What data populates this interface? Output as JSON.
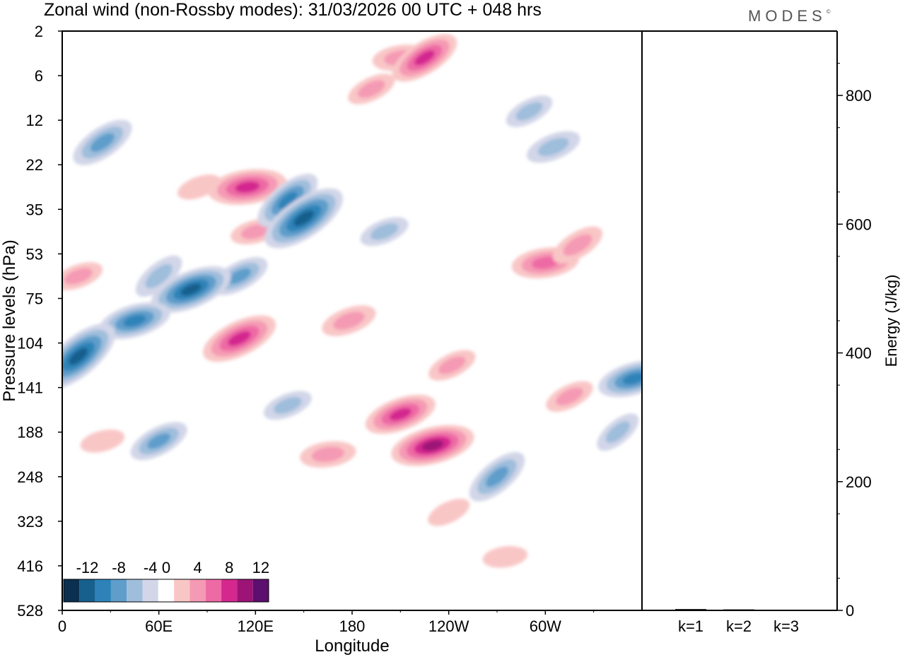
{
  "title": "Zonal wind (non-Rossby modes):  31/03/2026  00 UTC  + 048 hrs",
  "logo": "MODES",
  "logo_mark": "©",
  "chart_data": [
    {
      "type": "heatmap",
      "title": "Zonal wind (non-Rossby modes):  31/03/2026  00 UTC  + 048 hrs",
      "xlabel": "Longitude",
      "ylabel": "Pressure levels (hPa)",
      "x_ticks": [
        "0",
        "60E",
        "120E",
        "180",
        "120W",
        "60W"
      ],
      "x_range_deg": [
        0,
        360
      ],
      "y_ticks": [
        "2",
        "6",
        "12",
        "22",
        "35",
        "53",
        "75",
        "104",
        "141",
        "188",
        "248",
        "323",
        "416",
        "528"
      ],
      "colorbar": {
        "labels": [
          "-12",
          "-8",
          "-4",
          "0",
          "4",
          "8",
          "12"
        ],
        "levels": [
          -14,
          -12,
          -10,
          -8,
          -6,
          -4,
          -2,
          2,
          4,
          6,
          8,
          10,
          12,
          14
        ],
        "colors": [
          "#0b2f4f",
          "#175f8c",
          "#2d83b8",
          "#5f9dcb",
          "#9fbedc",
          "#d2d6e8",
          "#ffffff",
          "#f9c6c6",
          "#f59ab4",
          "#ee6aa5",
          "#d4288f",
          "#9b1476",
          "#5c0f6e"
        ]
      },
      "features": [
        {
          "lon": 60,
          "level": 5.5,
          "value": -5
        },
        {
          "lon": 25,
          "level": 2.5,
          "value": -7
        },
        {
          "lon": 85,
          "level": 3.5,
          "value": 3
        },
        {
          "lon": 120,
          "level": 4.5,
          "value": 4
        },
        {
          "lon": 115,
          "level": 3.5,
          "value": 9
        },
        {
          "lon": 140,
          "level": 3.8,
          "value": -8
        },
        {
          "lon": 150,
          "level": 4.2,
          "value": -11
        },
        {
          "lon": 110,
          "level": 5.5,
          "value": -6
        },
        {
          "lon": 80,
          "level": 5.8,
          "value": -10
        },
        {
          "lon": 45,
          "level": 6.5,
          "value": -8
        },
        {
          "lon": 10,
          "level": 7.3,
          "value": -11
        },
        {
          "lon": 110,
          "level": 6.9,
          "value": 9
        },
        {
          "lon": 10,
          "level": 5.5,
          "value": 4
        },
        {
          "lon": 200,
          "level": 4.5,
          "value": -4
        },
        {
          "lon": 210,
          "level": 0.6,
          "value": 5
        },
        {
          "lon": 225,
          "level": 0.6,
          "value": 8
        },
        {
          "lon": 192,
          "level": 1.3,
          "value": 4
        },
        {
          "lon": 290,
          "level": 1.8,
          "value": -4
        },
        {
          "lon": 305,
          "level": 2.6,
          "value": -5
        },
        {
          "lon": 300,
          "level": 5.2,
          "value": 7
        },
        {
          "lon": 320,
          "level": 4.8,
          "value": 5
        },
        {
          "lon": 242,
          "level": 7.5,
          "value": 4
        },
        {
          "lon": 210,
          "level": 8.6,
          "value": 8
        },
        {
          "lon": 230,
          "level": 9.3,
          "value": 10
        },
        {
          "lon": 165,
          "level": 9.5,
          "value": 5
        },
        {
          "lon": 270,
          "level": 10.0,
          "value": -7
        },
        {
          "lon": 240,
          "level": 10.8,
          "value": 3
        },
        {
          "lon": 60,
          "level": 9.2,
          "value": -6
        },
        {
          "lon": 25,
          "level": 9.2,
          "value": 3
        },
        {
          "lon": 355,
          "level": 7.8,
          "value": -8
        },
        {
          "lon": 345,
          "level": 9.0,
          "value": -4
        },
        {
          "lon": 315,
          "level": 8.2,
          "value": 4
        },
        {
          "lon": 178,
          "level": 6.5,
          "value": 5
        },
        {
          "lon": 140,
          "level": 8.4,
          "value": -4
        },
        {
          "lon": 275,
          "level": 11.8,
          "value": 3
        }
      ]
    },
    {
      "type": "bar",
      "ylabel": "Energy (J/kg)",
      "categories": [
        "k=1",
        "k=2",
        "k=3"
      ],
      "values": [
        2,
        1.5,
        1
      ],
      "ylim": [
        0,
        900
      ],
      "y_ticks": [
        "0",
        "200",
        "400",
        "600",
        "800"
      ]
    }
  ]
}
